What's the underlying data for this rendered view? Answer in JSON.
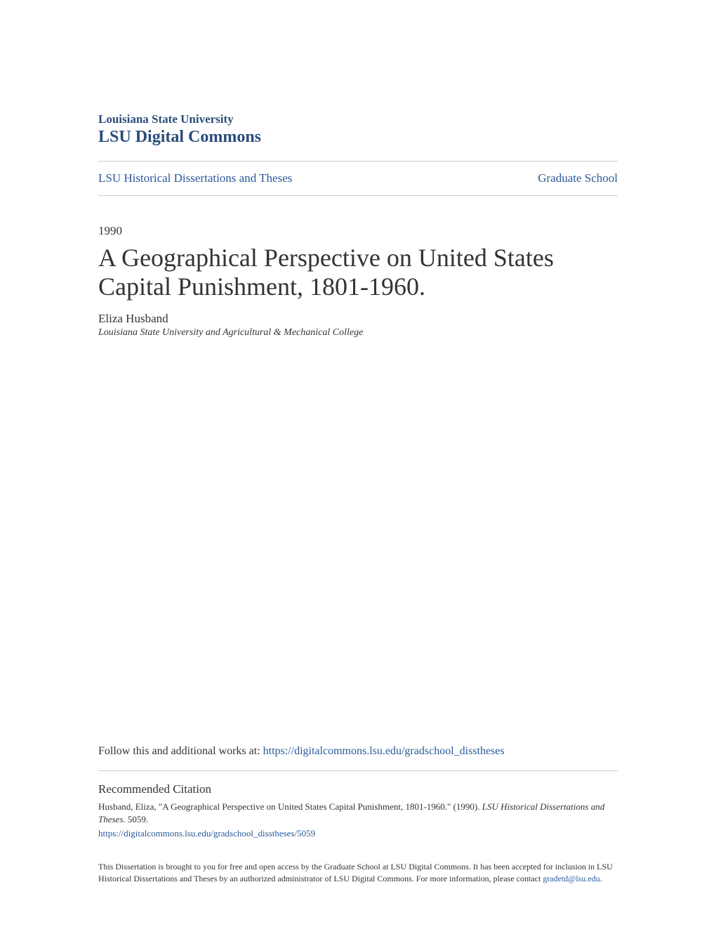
{
  "header": {
    "institution": "Louisiana State University",
    "repository": "LSU Digital Commons"
  },
  "nav": {
    "left_link": "LSU Historical Dissertations and Theses",
    "right_link": "Graduate School"
  },
  "document": {
    "year": "1990",
    "title": "A Geographical Perspective on United States Capital Punishment, 1801-1960.",
    "author": "Eliza Husband",
    "affiliation": "Louisiana State University and Agricultural & Mechanical College"
  },
  "follow": {
    "prefix": "Follow this and additional works at: ",
    "url": "https://digitalcommons.lsu.edu/gradschool_disstheses"
  },
  "citation": {
    "heading": "Recommended Citation",
    "text_part1": "Husband, Eliza, \"A Geographical Perspective on United States Capital Punishment, 1801-1960.\" (1990). ",
    "text_italic": "LSU Historical Dissertations and Theses",
    "text_part2": ". 5059.",
    "link": "https://digitalcommons.lsu.edu/gradschool_disstheses/5059"
  },
  "disclaimer": {
    "text": "This Dissertation is brought to you for free and open access by the Graduate School at LSU Digital Commons. It has been accepted for inclusion in LSU Historical Dissertations and Theses by an authorized administrator of LSU Digital Commons. For more information, please contact ",
    "email": "gradetd@lsu.edu",
    "suffix": "."
  },
  "colors": {
    "link_color": "#2a5a9a",
    "header_color": "#2a4d7a",
    "text_color": "#333333",
    "divider_color": "#cccccc",
    "background": "#ffffff"
  }
}
